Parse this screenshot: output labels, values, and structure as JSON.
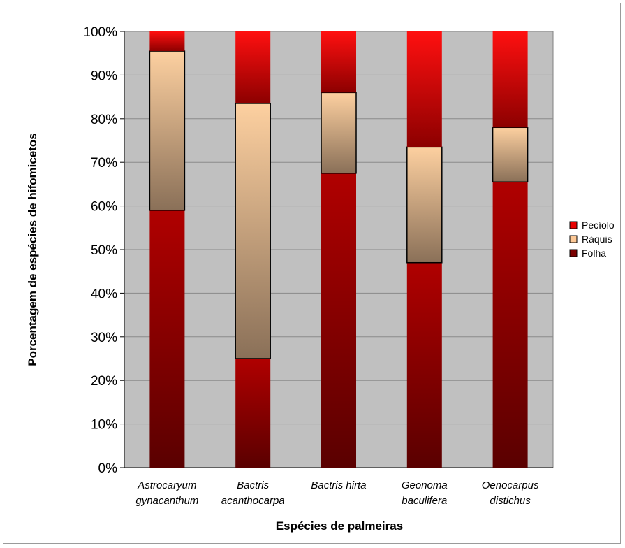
{
  "chart_data": {
    "type": "bar",
    "stacked": true,
    "percent": true,
    "categories": [
      [
        "Astrocaryum",
        "gynacanthum"
      ],
      [
        "Bactris",
        "acanthocarpa"
      ],
      [
        "Bactris hirta"
      ],
      [
        "Geonoma",
        "baculifera"
      ],
      [
        "Oenocarpus",
        "distichus"
      ]
    ],
    "series": [
      {
        "name": "Folha",
        "values": [
          59,
          25,
          67.5,
          47,
          65.5
        ],
        "color": "#7a0000"
      },
      {
        "name": "Ráquis",
        "values": [
          36.5,
          58.5,
          18.5,
          26.5,
          12.5
        ],
        "color": "#fcc896"
      },
      {
        "name": "Pecíolo",
        "values": [
          4.5,
          16.5,
          14,
          26.5,
          22
        ],
        "color": "#e80000"
      }
    ],
    "legend_order": [
      "Pecíolo",
      "Ráquis",
      "Folha"
    ],
    "legend_position": "right",
    "ylim": [
      0,
      100
    ],
    "yticks": [
      "0%",
      "10%",
      "20%",
      "30%",
      "40%",
      "50%",
      "60%",
      "70%",
      "80%",
      "90%",
      "100%"
    ],
    "xlabel": "Espécies de palmeiras",
    "ylabel": "Porcentagem de espécies de hifomicetos",
    "grid": true,
    "plot_background": "#c0c0c0"
  }
}
